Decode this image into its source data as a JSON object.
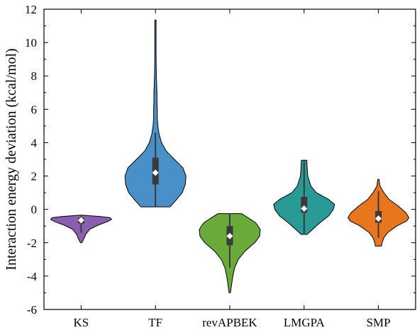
{
  "chart_data": {
    "type": "violin",
    "title": "",
    "xlabel": "",
    "ylabel": "Interaction energy deviation (kcal/mol)",
    "ylim": [
      -6,
      12
    ],
    "yticks": [
      -6,
      -4,
      -2,
      0,
      2,
      4,
      6,
      8,
      10,
      12
    ],
    "grid": false,
    "categories": [
      "KS",
      "TF",
      "revAPBEK",
      "LMGPA",
      "SMP"
    ],
    "series": [
      {
        "category": "KS",
        "color": "#8b5fb0",
        "min": -2.0,
        "max": -0.35,
        "q1": -0.85,
        "median": -0.65,
        "q3": -0.5,
        "whisker_low": -1.4,
        "whisker_high": -0.35,
        "density": [
          [
            -2.0,
            0.02
          ],
          [
            -1.8,
            0.08
          ],
          [
            -1.5,
            0.15
          ],
          [
            -1.2,
            0.28
          ],
          [
            -0.95,
            0.55
          ],
          [
            -0.75,
            0.85
          ],
          [
            -0.6,
            1.0
          ],
          [
            -0.5,
            0.95
          ],
          [
            -0.42,
            0.6
          ],
          [
            -0.35,
            0.05
          ]
        ]
      },
      {
        "category": "TF",
        "color": "#4a90c8",
        "min": 0.15,
        "max": 11.35,
        "q1": 1.5,
        "median": 2.2,
        "q3": 3.1,
        "whisker_low": 0.15,
        "whisker_high": 4.6,
        "density": [
          [
            0.15,
            0.48
          ],
          [
            0.5,
            0.65
          ],
          [
            1.0,
            0.88
          ],
          [
            1.5,
            0.98
          ],
          [
            2.0,
            1.0
          ],
          [
            2.5,
            0.9
          ],
          [
            3.0,
            0.62
          ],
          [
            3.5,
            0.35
          ],
          [
            4.0,
            0.2
          ],
          [
            4.5,
            0.12
          ],
          [
            5.0,
            0.08
          ],
          [
            5.5,
            0.06
          ],
          [
            6.0,
            0.06
          ],
          [
            6.5,
            0.05
          ],
          [
            7.0,
            0.05
          ],
          [
            7.5,
            0.04
          ],
          [
            8.0,
            0.03
          ],
          [
            9.0,
            0.02
          ],
          [
            10.0,
            0.02
          ],
          [
            11.35,
            0.02
          ]
        ]
      },
      {
        "category": "revAPBEK",
        "color": "#6aaa3a",
        "min": -5.0,
        "max": -0.25,
        "q1": -2.15,
        "median": -1.6,
        "q3": -1.0,
        "whisker_low": -3.5,
        "whisker_high": -0.25,
        "density": [
          [
            -5.0,
            0.02
          ],
          [
            -4.5,
            0.06
          ],
          [
            -4.0,
            0.1
          ],
          [
            -3.5,
            0.16
          ],
          [
            -3.0,
            0.28
          ],
          [
            -2.5,
            0.5
          ],
          [
            -2.0,
            0.82
          ],
          [
            -1.6,
            0.98
          ],
          [
            -1.2,
            1.0
          ],
          [
            -0.8,
            0.85
          ],
          [
            -0.5,
            0.6
          ],
          [
            -0.25,
            0.38
          ]
        ]
      },
      {
        "category": "LMGPA",
        "color": "#2a9a96",
        "min": -1.5,
        "max": 2.95,
        "q1": -0.2,
        "median": 0.05,
        "q3": 0.75,
        "whisker_low": -1.5,
        "whisker_high": 2.95,
        "density": [
          [
            -1.5,
            0.1
          ],
          [
            -1.2,
            0.28
          ],
          [
            -0.8,
            0.52
          ],
          [
            -0.4,
            0.8
          ],
          [
            0.0,
            0.96
          ],
          [
            0.3,
            1.0
          ],
          [
            0.6,
            0.8
          ],
          [
            1.0,
            0.4
          ],
          [
            1.4,
            0.22
          ],
          [
            2.0,
            0.12
          ],
          [
            2.5,
            0.1
          ],
          [
            2.95,
            0.09
          ]
        ]
      },
      {
        "category": "SMP",
        "color": "#e8761e",
        "min": -2.2,
        "max": 1.8,
        "q1": -0.8,
        "median": -0.55,
        "q3": -0.1,
        "whisker_low": -1.7,
        "whisker_high": 1.1,
        "density": [
          [
            -2.2,
            0.1
          ],
          [
            -2.0,
            0.12
          ],
          [
            -1.7,
            0.18
          ],
          [
            -1.4,
            0.3
          ],
          [
            -1.0,
            0.6
          ],
          [
            -0.7,
            0.92
          ],
          [
            -0.5,
            1.0
          ],
          [
            -0.2,
            0.9
          ],
          [
            0.2,
            0.65
          ],
          [
            0.6,
            0.35
          ],
          [
            1.0,
            0.18
          ],
          [
            1.4,
            0.05
          ],
          [
            1.8,
            0.02
          ]
        ]
      }
    ]
  }
}
